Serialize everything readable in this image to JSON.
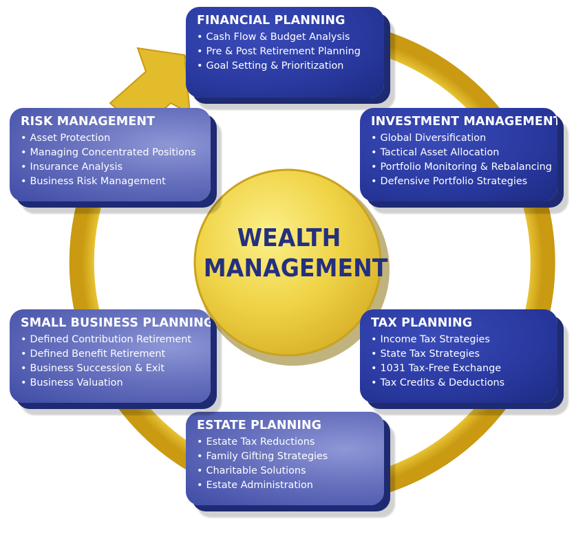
{
  "center": {
    "line1": "WEALTH",
    "line2": "MANAGEMENT"
  },
  "colors": {
    "ring": "#e2bc2a",
    "box_dark": "#2a3aa1",
    "box_light": "#6670bd",
    "center_text": "#24307f"
  },
  "boxes": [
    {
      "title": "FINANCIAL PLANNING",
      "items": [
        "Cash Flow & Budget Analysis",
        "Pre & Post Retirement Planning",
        "Goal Setting & Prioritization"
      ]
    },
    {
      "title": "INVESTMENT MANAGEMENT",
      "items": [
        "Global Diversification",
        "Tactical Asset Allocation",
        "Portfolio Monitoring & Rebalancing",
        "Defensive Portfolio Strategies"
      ]
    },
    {
      "title": "TAX PLANNING",
      "items": [
        "Income Tax Strategies",
        "State Tax Strategies",
        "1031 Tax-Free Exchange",
        "Tax Credits & Deductions"
      ]
    },
    {
      "title": "ESTATE PLANNING",
      "items": [
        "Estate Tax Reductions",
        "Family Gifting Strategies",
        "Charitable Solutions",
        "Estate Administration"
      ]
    },
    {
      "title": "SMALL BUSINESS PLANNING",
      "items": [
        "Defined Contribution Retirement",
        "Defined Benefit Retirement",
        "Business Succession & Exit",
        "Business Valuation"
      ]
    },
    {
      "title": "RISK MANAGEMENT",
      "items": [
        "Asset Protection",
        "Managing Concentrated Positions",
        "Insurance Analysis",
        "Business Risk Management"
      ]
    }
  ]
}
